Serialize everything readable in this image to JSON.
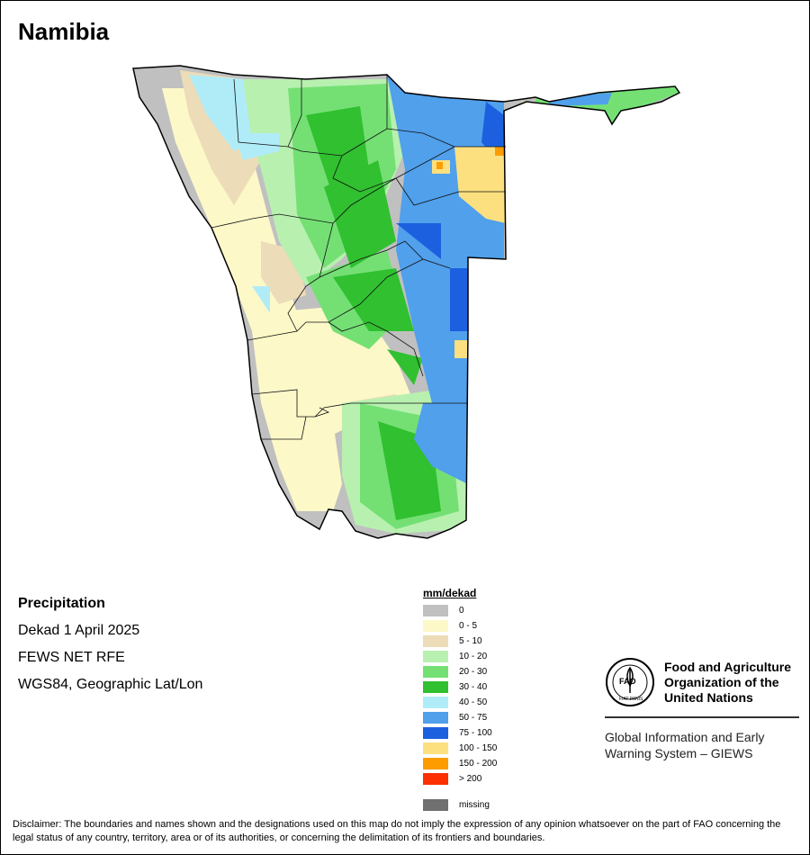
{
  "title": "Namibia",
  "meta": {
    "variable": "Precipitation",
    "period": "Dekad 1 April 2025",
    "source": "FEWS NET RFE",
    "projection": "WGS84, Geographic Lat/Lon"
  },
  "legend": {
    "title": "mm/dekad",
    "classes": [
      {
        "label": "0",
        "color": "#c0c0c0"
      },
      {
        "label": "0 - 5",
        "color": "#fcf8c8"
      },
      {
        "label": "5 - 10",
        "color": "#ecdcb8"
      },
      {
        "label": "10 - 20",
        "color": "#b8f0b0"
      },
      {
        "label": "20 - 30",
        "color": "#74e074"
      },
      {
        "label": "30 - 40",
        "color": "#30c030"
      },
      {
        "label": "40 - 50",
        "color": "#b0ecf8"
      },
      {
        "label": "50 - 75",
        "color": "#50a0ec"
      },
      {
        "label": "75 - 100",
        "color": "#1c60e0"
      },
      {
        "label": "100 - 150",
        "color": "#fce080"
      },
      {
        "label": "150 - 200",
        "color": "#fc9c00"
      },
      {
        "label": "> 200",
        "color": "#fc3000"
      }
    ],
    "missing": {
      "label": "missing",
      "color": "#707070"
    }
  },
  "org": {
    "name_line1": "Food and Agriculture",
    "name_line2": "Organization of the",
    "name_line3": "United Nations",
    "logo_text": "FAO",
    "logo_motto": "FIAT PANIS",
    "system_line1": "Global Information and Early",
    "system_line2": "Warning System – GIEWS"
  },
  "disclaimer": "Disclaimer: The boundaries and names shown and the designations used on this map do not imply the expression of any opinion whatsoever on the part of FAO concerning the legal status of any country, territory, area or of its authorities, or concerning the delimitation of its frontiers and boundaries."
}
